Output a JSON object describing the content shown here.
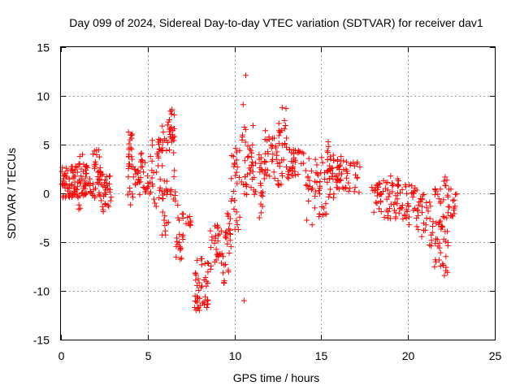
{
  "chart_data": {
    "type": "scatter",
    "title": "Day 099 of 2024, Sidereal Day-to-day VTEC variation (SDTVAR) for receiver dav1",
    "xlabel": "GPS time / hours",
    "ylabel": "SDTVAR / TECUs",
    "xlim": [
      0,
      25
    ],
    "ylim": [
      -15,
      15
    ],
    "xticks": [
      0,
      5,
      10,
      15,
      20,
      25
    ],
    "yticks": [
      -15,
      -10,
      -5,
      0,
      5,
      10,
      15
    ],
    "grid": true,
    "marker": "plus",
    "color": "#ff0000",
    "series": [
      {
        "name": "SDTVAR",
        "segments": [
          {
            "t0": 0.05,
            "t1": 0.95,
            "lo": -0.5,
            "hi": 2.8,
            "n": 60
          },
          {
            "t0": 0.95,
            "t1": 1.25,
            "lo": -1.8,
            "hi": 4.0,
            "n": 22
          },
          {
            "t0": 1.25,
            "t1": 1.75,
            "lo": -0.3,
            "hi": 3.0,
            "n": 30
          },
          {
            "t0": 1.75,
            "t1": 2.3,
            "lo": -0.5,
            "hi": 4.6,
            "n": 34
          },
          {
            "t0": 2.3,
            "t1": 2.9,
            "lo": -2.6,
            "hi": 2.0,
            "n": 30
          },
          {
            "t0": 3.85,
            "t1": 4.2,
            "lo": -1.2,
            "hi": 6.3,
            "n": 30
          },
          {
            "t0": 4.2,
            "t1": 4.6,
            "lo": -0.5,
            "hi": 2.5,
            "n": 16
          },
          {
            "t0": 4.6,
            "t1": 5.2,
            "lo": -0.4,
            "hi": 4.2,
            "n": 22
          },
          {
            "t0": 5.2,
            "t1": 5.8,
            "lo": -1.5,
            "hi": 5.8,
            "n": 28
          },
          {
            "t0": 5.8,
            "t1": 6.2,
            "lo": -4.8,
            "hi": 7.5,
            "n": 34
          },
          {
            "t0": 6.2,
            "t1": 6.6,
            "lo": -0.8,
            "hi": 8.6,
            "n": 30
          },
          {
            "t0": 6.6,
            "t1": 7.05,
            "lo": -6.8,
            "hi": -1.2,
            "n": 22
          },
          {
            "t0": 7.2,
            "t1": 7.5,
            "lo": -3.8,
            "hi": -2.2,
            "n": 8
          },
          {
            "t0": 7.7,
            "t1": 8.5,
            "lo": -12.0,
            "hi": -6.5,
            "n": 46
          },
          {
            "t0": 8.6,
            "t1": 9.2,
            "lo": -8.0,
            "hi": -3.0,
            "n": 24
          },
          {
            "t0": 9.2,
            "t1": 9.8,
            "lo": -9.8,
            "hi": -2.0,
            "n": 30
          },
          {
            "t0": 9.8,
            "t1": 10.3,
            "lo": -4.0,
            "hi": 4.8,
            "n": 26
          },
          {
            "t0": 10.4,
            "t1": 11.3,
            "lo": -0.5,
            "hi": 7.0,
            "n": 40
          },
          {
            "t0": 11.3,
            "t1": 11.7,
            "lo": -2.7,
            "hi": 4.0,
            "n": 18
          },
          {
            "t0": 11.7,
            "t1": 12.5,
            "lo": 1.2,
            "hi": 6.5,
            "n": 34
          },
          {
            "t0": 12.5,
            "t1": 13.0,
            "lo": 0.2,
            "hi": 8.7,
            "n": 28
          },
          {
            "t0": 13.0,
            "t1": 14.1,
            "lo": 1.5,
            "hi": 4.5,
            "n": 34
          },
          {
            "t0": 14.1,
            "t1": 15.3,
            "lo": -3.3,
            "hi": 3.8,
            "n": 44
          },
          {
            "t0": 15.3,
            "t1": 15.8,
            "lo": -0.5,
            "hi": 5.4,
            "n": 30
          },
          {
            "t0": 15.8,
            "t1": 17.3,
            "lo": 0.0,
            "hi": 3.8,
            "n": 50
          },
          {
            "t0": 17.9,
            "t1": 18.5,
            "lo": -2.0,
            "hi": 1.2,
            "n": 22
          },
          {
            "t0": 18.5,
            "t1": 19.8,
            "lo": -2.8,
            "hi": 1.8,
            "n": 46
          },
          {
            "t0": 19.8,
            "t1": 20.5,
            "lo": -3.5,
            "hi": 1.0,
            "n": 24
          },
          {
            "t0": 20.5,
            "t1": 21.1,
            "lo": -4.5,
            "hi": 0.5,
            "n": 24
          },
          {
            "t0": 21.1,
            "t1": 22.0,
            "lo": -7.8,
            "hi": 0.8,
            "n": 42
          },
          {
            "t0": 22.0,
            "t1": 22.3,
            "lo": -8.6,
            "hi": 2.0,
            "n": 22
          },
          {
            "t0": 22.3,
            "t1": 22.8,
            "lo": -2.5,
            "hi": 0.5,
            "n": 18
          }
        ],
        "points": [
          [
            10.65,
            12.1
          ],
          [
            10.5,
            9.1
          ],
          [
            10.55,
            -11.0
          ],
          [
            8.7,
            -4.8
          ],
          [
            6.4,
            8.6
          ],
          [
            12.75,
            8.8
          ]
        ]
      }
    ]
  }
}
